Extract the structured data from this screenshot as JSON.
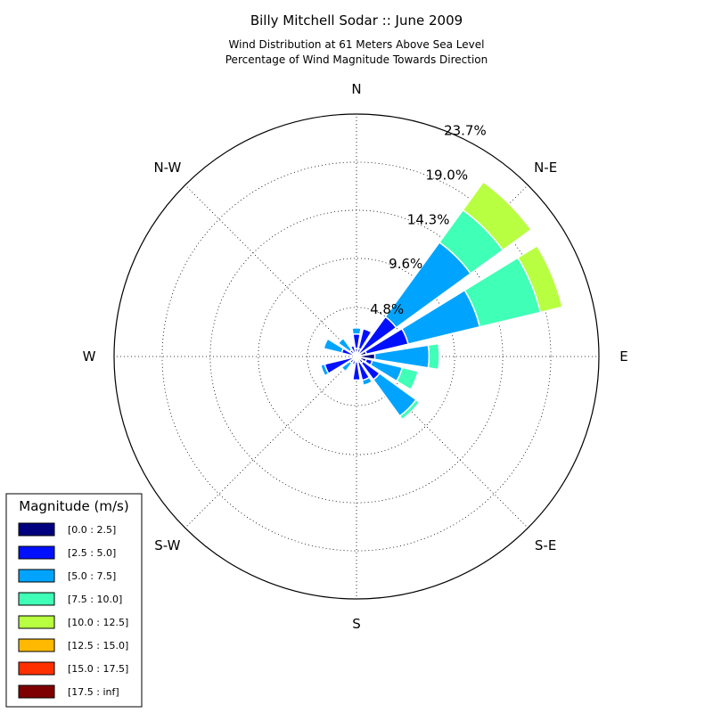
{
  "chart_data": {
    "type": "windrose",
    "title": "Billy Mitchell Sodar :: June 2009",
    "subtitle_lines": [
      "Wind Distribution at 61 Meters Above Sea Level",
      "Percentage of Wind Magnitude Towards Direction"
    ],
    "directions": [
      "N",
      "N-E",
      "E",
      "S-E",
      "S",
      "S-W",
      "W",
      "N-W"
    ],
    "rings": [
      4.8,
      9.6,
      14.3,
      19.0,
      23.7
    ],
    "ring_labels": [
      "4.8%",
      "9.6%",
      "14.3%",
      "19.0%",
      "23.7%"
    ],
    "rmax": 23.7,
    "legend": {
      "title": "Magnitude (m/s)",
      "placement": "bottom-left"
    },
    "bins": [
      {
        "name": "[0.0 : 2.5]",
        "color": "#00007f"
      },
      {
        "name": "[2.5 : 5.0]",
        "color": "#0010ff"
      },
      {
        "name": "[5.0 : 7.5]",
        "color": "#00a4ff"
      },
      {
        "name": "[7.5 : 10.0]",
        "color": "#40ffb7"
      },
      {
        "name": "[10.0 : 12.5]",
        "color": "#b7ff40"
      },
      {
        "name": "[12.5 : 15.0]",
        "color": "#ffb900"
      },
      {
        "name": "[15.0 : 17.5]",
        "color": "#ff3000"
      },
      {
        "name": "[17.5 : inf]",
        "color": "#7f0000"
      }
    ],
    "sectors": [
      {
        "direction_deg": 0,
        "values": [
          0.8,
          1.4,
          0.6,
          0,
          0,
          0,
          0,
          0
        ]
      },
      {
        "direction_deg": 22.5,
        "values": [
          0.8,
          2.0,
          0,
          0,
          0,
          0,
          0,
          0
        ]
      },
      {
        "direction_deg": 45,
        "values": [
          0.3,
          4.5,
          9.0,
          3.9,
          3.4,
          0,
          0,
          0
        ]
      },
      {
        "direction_deg": 67.5,
        "values": [
          1.0,
          4.2,
          7.2,
          6.1,
          2.2,
          0,
          0,
          0
        ]
      },
      {
        "direction_deg": 90,
        "values": [
          1.8,
          0,
          5.3,
          1.0,
          0,
          0,
          0,
          0
        ]
      },
      {
        "direction_deg": 112.5,
        "values": [
          1.0,
          0.6,
          3.0,
          1.6,
          0,
          0,
          0,
          0
        ]
      },
      {
        "direction_deg": 135,
        "values": [
          0.8,
          2.0,
          4.4,
          0.4,
          0,
          0,
          0,
          0
        ]
      },
      {
        "direction_deg": 157.5,
        "values": [
          0.6,
          1.8,
          0.5,
          0,
          0,
          0,
          0,
          0
        ]
      },
      {
        "direction_deg": 180,
        "values": [
          0.5,
          1.8,
          0,
          0,
          0,
          0,
          0,
          0
        ]
      },
      {
        "direction_deg": 202.5,
        "values": [
          0.2,
          0.6,
          0,
          0,
          0,
          0,
          0,
          0
        ]
      },
      {
        "direction_deg": 225,
        "values": [
          0.3,
          0.5,
          1.0,
          0,
          0,
          0,
          0,
          0
        ]
      },
      {
        "direction_deg": 247.5,
        "values": [
          0.2,
          3.0,
          0.4,
          0,
          0,
          0,
          0,
          0
        ]
      },
      {
        "direction_deg": 270,
        "values": [
          0.3,
          0,
          0,
          0,
          0,
          0,
          0,
          0
        ]
      },
      {
        "direction_deg": 292.5,
        "values": [
          0.3,
          1.2,
          1.8,
          0,
          0,
          0,
          0,
          0
        ]
      },
      {
        "direction_deg": 315,
        "values": [
          0.3,
          0.5,
          1.4,
          0,
          0,
          0,
          0,
          0
        ]
      },
      {
        "direction_deg": 337.5,
        "values": [
          0.3,
          0.8,
          0,
          0,
          0,
          0,
          0,
          0
        ]
      }
    ]
  }
}
